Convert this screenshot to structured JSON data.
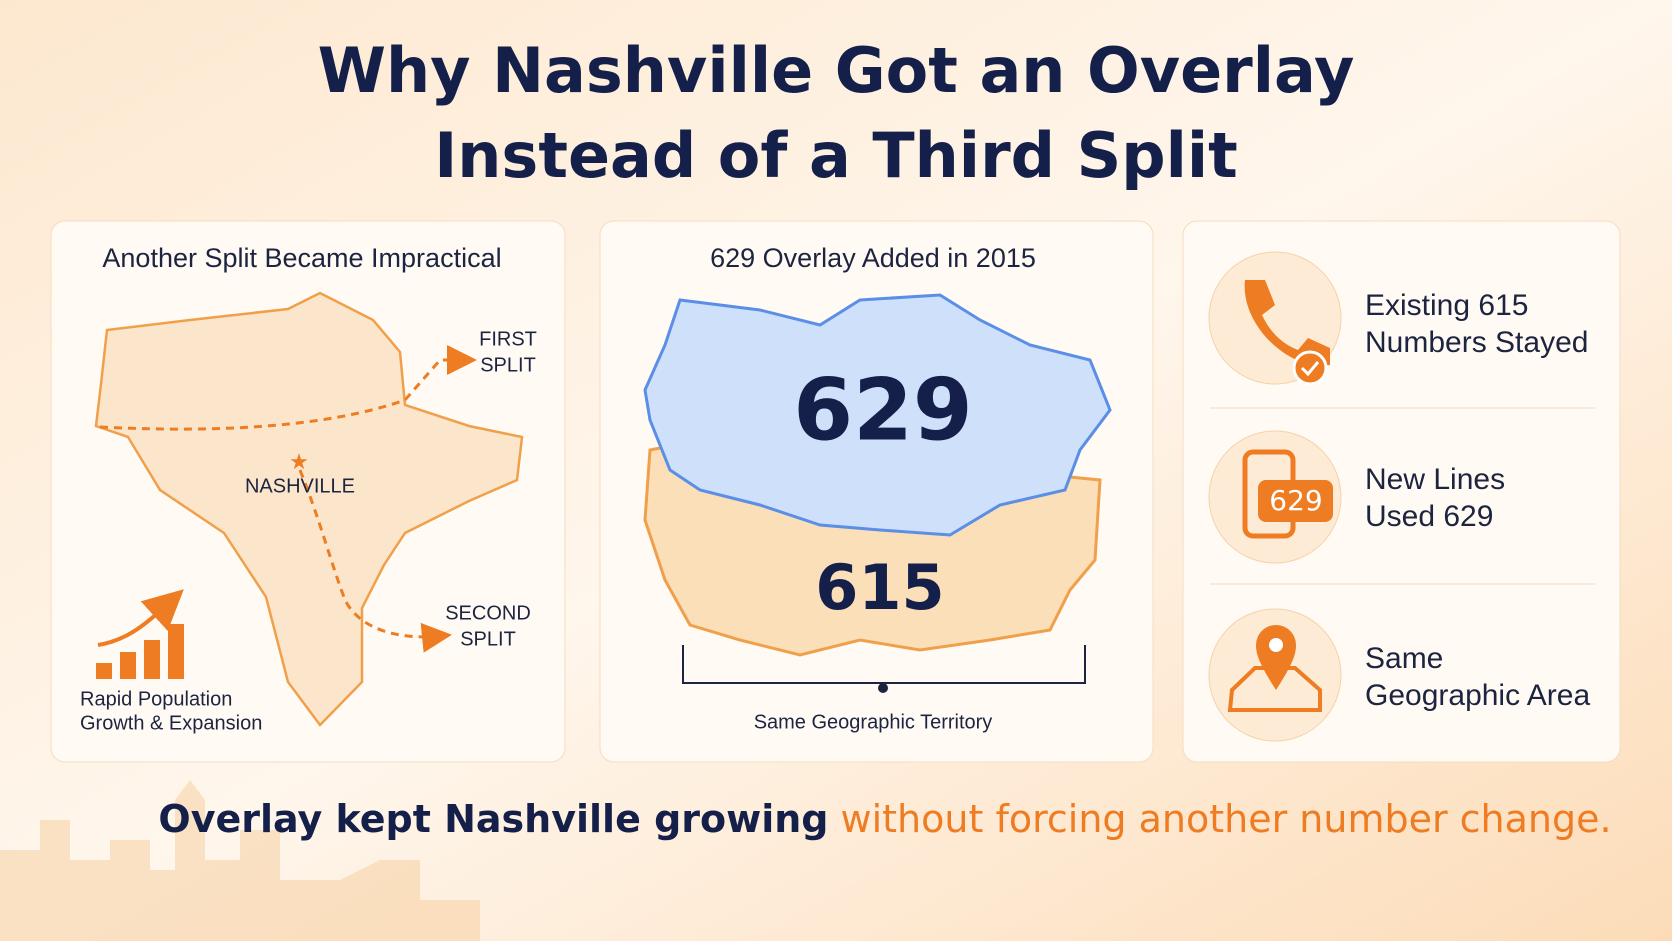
{
  "header": {
    "title_lines": [
      "Why Nashville Got an Overlay",
      "Instead of a Third Split"
    ]
  },
  "panels": [
    {
      "heading": "Another Split Became Impractical",
      "map_label": "NASHVILLE",
      "arrows": [
        {
          "label_lines": [
            "FIRST",
            "SPLIT"
          ]
        },
        {
          "label_lines": [
            "SECOND",
            "SPLIT"
          ]
        }
      ],
      "caption_lines": [
        "Rapid Population",
        "Growth & Expansion"
      ]
    },
    {
      "heading": "629 Overlay Added in 2015",
      "layers": [
        "629",
        "615"
      ],
      "caption": "Same Geographic Territory"
    },
    {
      "items": [
        {
          "lines": [
            "Existing 615",
            "Numbers Stayed"
          ]
        },
        {
          "icon_badge": "629",
          "lines": [
            "New Lines",
            "Used 629"
          ]
        },
        {
          "lines": [
            "Same",
            "Geographic Area"
          ]
        }
      ]
    }
  ],
  "footer": {
    "text": "Overlay kept Nashville growing",
    "highlight": "without forcing another number change."
  }
}
